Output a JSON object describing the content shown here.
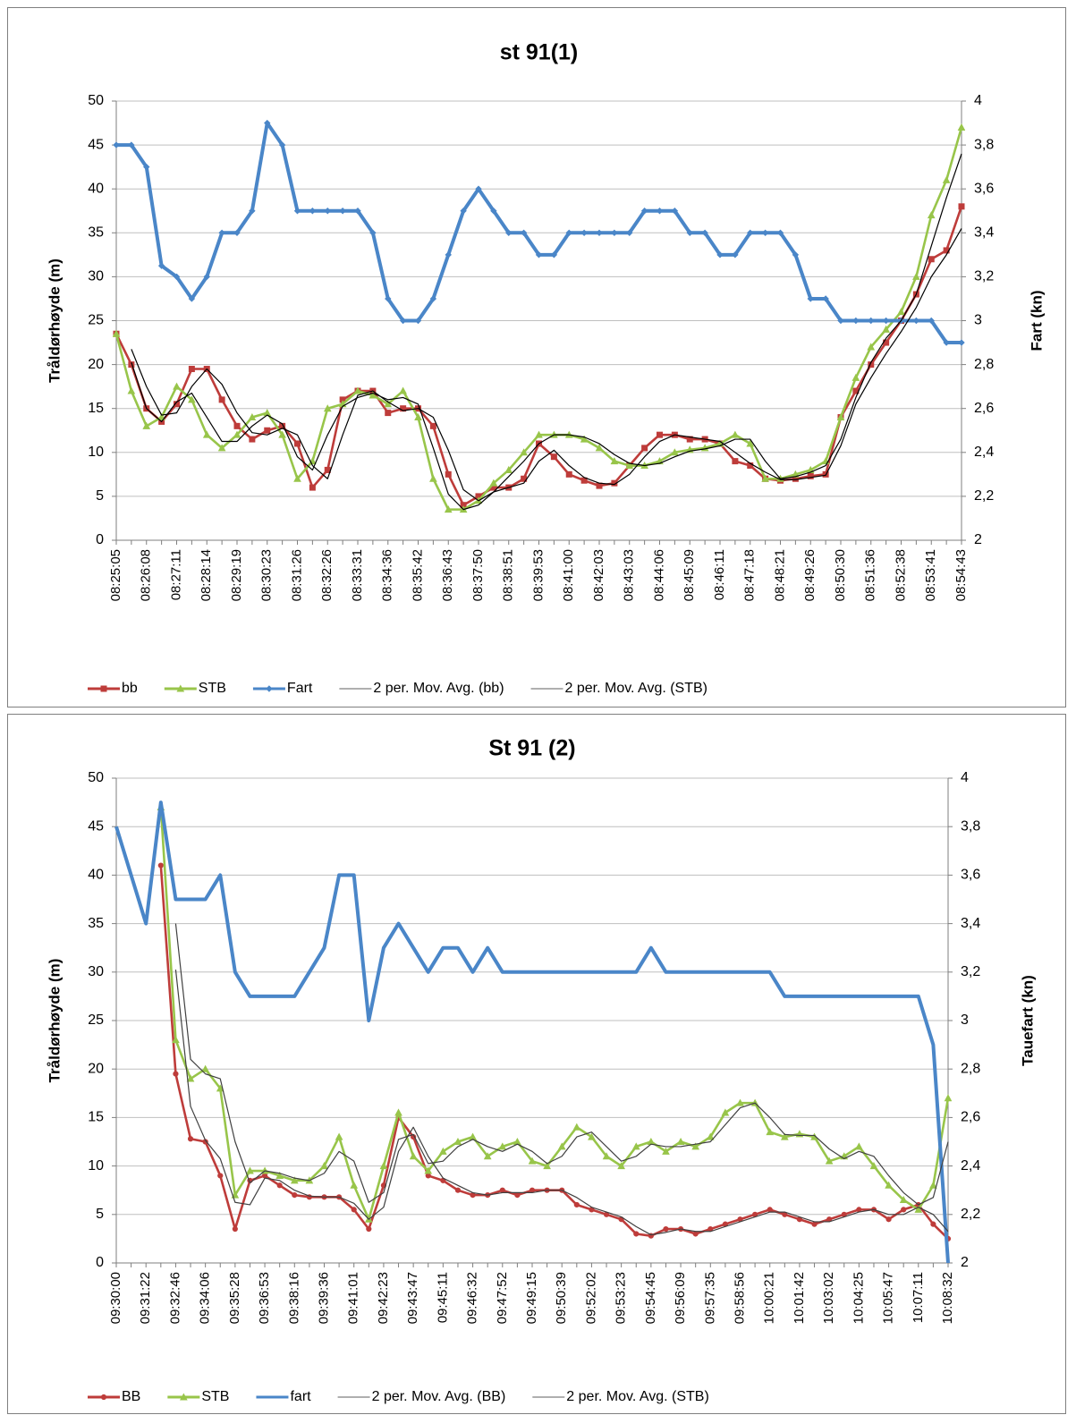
{
  "chart_data": [
    {
      "type": "line",
      "title": "st 91(1)",
      "ylabel": "Tråldørhøyde (m)",
      "y2label": "Fart (kn)",
      "categories": [
        "08:25:05",
        null,
        "08:26:08",
        null,
        "08:27:11",
        null,
        "08:28:14",
        null,
        "08:29:19",
        null,
        "08:30:23",
        null,
        "08:31:26",
        null,
        "08:32:26",
        null,
        "08:33:31",
        null,
        "08:34:36",
        null,
        "08:35:42",
        null,
        "08:36:43",
        null,
        "08:37:50",
        null,
        "08:38:51",
        null,
        "08:39:53",
        null,
        "08:41:00",
        null,
        "08:42:03",
        null,
        "08:43:03",
        null,
        "08:44:06",
        null,
        "08:45:09",
        null,
        "08:46:11",
        null,
        "08:47:18",
        null,
        "08:48:21",
        null,
        "08:49:26",
        null,
        "08:50:30",
        null,
        "08:51:36",
        null,
        "08:52:38",
        null,
        "08:53:41",
        null,
        "08:54:43"
      ],
      "ylim": [
        0,
        50
      ],
      "yticks": [
        0,
        5,
        10,
        15,
        20,
        25,
        30,
        35,
        40,
        45,
        50
      ],
      "y2lim": [
        2,
        4
      ],
      "y2ticks": [
        2,
        {
          "value": 2.2,
          "label": "2,2"
        },
        {
          "value": 2.4,
          "label": "2,4"
        },
        {
          "value": 2.6,
          "label": "2,6"
        },
        {
          "value": 2.8,
          "label": "2,8"
        },
        3,
        {
          "value": 3.2,
          "label": "3,2"
        },
        {
          "value": 3.4,
          "label": "3,4"
        },
        {
          "value": 3.6,
          "label": "3,6"
        },
        {
          "value": 3.8,
          "label": "3,8"
        },
        4
      ],
      "grid": true,
      "legend": "bottom",
      "series": [
        {
          "name": "bb",
          "color": "#be3c3a",
          "marker": "square",
          "values": [
            23.5,
            20,
            15,
            13.5,
            15.5,
            19.5,
            19.5,
            16,
            13,
            11.5,
            12.5,
            13,
            11,
            6,
            8,
            16,
            17,
            17,
            14.5,
            15,
            15,
            13,
            7.5,
            4,
            5,
            6,
            6,
            7,
            11,
            9.5,
            7.5,
            6.8,
            6.2,
            6.5,
            8.5,
            10.5,
            12,
            12,
            11.5,
            11.5,
            11,
            9,
            8.5,
            7,
            6.8,
            7,
            7.3,
            7.5,
            14,
            17,
            20,
            22.5,
            25,
            28,
            32,
            33,
            38
          ]
        },
        {
          "name": "STB",
          "color": "#98c54a",
          "marker": "triangle",
          "values": [
            23.5,
            17,
            13,
            14,
            17.5,
            16,
            12,
            10.5,
            12,
            14,
            14.5,
            12,
            7,
            9,
            15,
            15.5,
            17,
            16.5,
            15.5,
            17,
            14,
            7,
            3.5,
            3.5,
            4.5,
            6.5,
            8,
            10,
            12,
            12,
            12,
            11.5,
            10.5,
            9,
            8.5,
            8.5,
            9,
            10,
            10.3,
            10.5,
            11,
            12,
            11,
            7,
            7,
            7.5,
            8,
            9,
            14,
            18.5,
            22,
            24,
            26,
            30,
            37,
            41,
            47
          ]
        },
        {
          "name": "Fart",
          "color": "#4a86c8",
          "marker": "diamond",
          "axis": "y2",
          "values": [
            3.8,
            3.8,
            3.7,
            3.25,
            3.2,
            3.1,
            3.2,
            3.4,
            3.4,
            3.5,
            3.9,
            3.8,
            3.5,
            3.5,
            3.5,
            3.5,
            3.5,
            3.4,
            3.1,
            3.0,
            3.0,
            3.1,
            3.3,
            3.5,
            3.6,
            3.5,
            3.4,
            3.4,
            3.3,
            3.3,
            3.4,
            3.4,
            3.4,
            3.4,
            3.4,
            3.5,
            3.5,
            3.5,
            3.4,
            3.4,
            3.3,
            3.3,
            3.4,
            3.4,
            3.4,
            3.3,
            3.1,
            3.1,
            3.0,
            3.0,
            3.0,
            3.0,
            3.0,
            3.0,
            3.0,
            2.9,
            2.9
          ]
        },
        {
          "name": "2 per. Mov. Avg. (bb)",
          "color": "#000000",
          "marker": "none",
          "values": [
            null,
            21.75,
            17.5,
            14.25,
            14.5,
            17.5,
            19.5,
            17.75,
            14.5,
            12.25,
            12,
            12.75,
            12,
            8.5,
            7,
            12,
            16.5,
            17,
            15.75,
            14.75,
            15,
            14,
            10.25,
            5.75,
            4.5,
            5.5,
            6,
            6.5,
            9,
            10.25,
            8.5,
            7.15,
            6.5,
            6.35,
            7.5,
            9.5,
            11.25,
            12,
            11.75,
            11.5,
            11.25,
            10,
            8.75,
            7.75,
            6.9,
            6.9,
            7.15,
            7.4,
            10.75,
            15.5,
            18.5,
            21.25,
            23.75,
            26.5,
            30,
            32.5,
            35.5
          ]
        },
        {
          "name": "2 per. Mov. Avg. (STB)",
          "color": "#000000",
          "marker": "none",
          "values": [
            null,
            20.25,
            15,
            13.5,
            15.75,
            16.75,
            14,
            11.25,
            11.25,
            13,
            14.25,
            13.25,
            9.5,
            8,
            12,
            15.25,
            16.25,
            16.75,
            16,
            16.25,
            15.5,
            10.5,
            5.25,
            3.5,
            4,
            5.5,
            7.25,
            9,
            11,
            12,
            12,
            11.75,
            11,
            9.75,
            8.75,
            8.5,
            8.75,
            9.5,
            10.15,
            10.4,
            10.75,
            11.5,
            11.5,
            9,
            7,
            7.25,
            7.75,
            8.5,
            11.5,
            16.25,
            20.25,
            23,
            25,
            28,
            33.5,
            39,
            44
          ]
        }
      ]
    },
    {
      "type": "line",
      "title": "St 91 (2)",
      "ylabel": "Tråldørhøyde (m)",
      "y2label": "Tauefart (kn)",
      "categories": [
        "09:30:00",
        null,
        "09:31:22",
        null,
        "09:32:46",
        null,
        "09:34:06",
        null,
        "09:35:28",
        null,
        "09:36:53",
        null,
        "09:38:16",
        null,
        "09:39:36",
        null,
        "09:41:01",
        null,
        "09:42:23",
        null,
        "09:43:47",
        null,
        "09:45:11",
        null,
        "09:46:32",
        null,
        "09:47:52",
        null,
        "09:49:15",
        null,
        "09:50:39",
        null,
        "09:52:02",
        null,
        "09:53:23",
        null,
        "09:54:45",
        null,
        "09:56:09",
        null,
        "09:57:35",
        null,
        "09:58:56",
        null,
        "10:00:21",
        null,
        "10:01:42",
        null,
        "10:03:02",
        null,
        "10:04:25",
        null,
        "10:05:47",
        null,
        "10:07:11",
        null,
        "10:08:32"
      ],
      "ylim": [
        0,
        50
      ],
      "yticks": [
        0,
        5,
        10,
        15,
        20,
        25,
        30,
        35,
        40,
        45,
        50
      ],
      "y2lim": [
        2,
        4
      ],
      "y2ticks": [
        2,
        {
          "value": 2.2,
          "label": "2,2"
        },
        {
          "value": 2.4,
          "label": "2,4"
        },
        {
          "value": 2.6,
          "label": "2,6"
        },
        {
          "value": 2.8,
          "label": "2,8"
        },
        3,
        {
          "value": 3.2,
          "label": "3,2"
        },
        {
          "value": 3.4,
          "label": "3,4"
        },
        {
          "value": 3.6,
          "label": "3,6"
        },
        {
          "value": 3.8,
          "label": "3,8"
        },
        4
      ],
      "grid": true,
      "legend": "bottom",
      "series": [
        {
          "name": "BB",
          "color": "#be3c3a",
          "marker": "circle",
          "values": [
            null,
            null,
            null,
            41,
            19.5,
            12.8,
            12.5,
            9,
            3.5,
            8.5,
            9,
            8,
            7,
            6.8,
            6.8,
            6.8,
            5.5,
            3.5,
            8,
            15,
            13,
            9,
            8.5,
            7.5,
            7,
            7,
            7.5,
            7,
            7.5,
            7.5,
            7.5,
            6,
            5.5,
            5,
            4.5,
            3,
            2.8,
            3.5,
            3.5,
            3,
            3.5,
            4,
            4.5,
            5,
            5.5,
            5,
            4.5,
            4,
            4.5,
            5,
            5.5,
            5.5,
            4.5,
            5.5,
            6,
            4,
            2.5
          ]
        },
        {
          "name": "STB",
          "color": "#98c54a",
          "marker": "triangle",
          "values": [
            null,
            null,
            null,
            47,
            23,
            19,
            20,
            18,
            7,
            9.5,
            9.5,
            9,
            8.5,
            8.5,
            10,
            13,
            8,
            4.5,
            10,
            15.5,
            11,
            9.5,
            11.5,
            12.5,
            13,
            11,
            12,
            12.5,
            10.5,
            10,
            12,
            14,
            13,
            11,
            10,
            12,
            12.5,
            11.5,
            12.5,
            12,
            13,
            15.5,
            16.5,
            16.5,
            13.5,
            13,
            13.3,
            13,
            10.5,
            11,
            12,
            10,
            8,
            6.5,
            5.5,
            8,
            17
          ]
        },
        {
          "name": "fart",
          "color": "#4a86c8",
          "marker": "none",
          "axis": "y2",
          "values": [
            3.8,
            3.6,
            3.4,
            3.9,
            3.5,
            3.5,
            3.5,
            3.6,
            3.2,
            3.1,
            3.1,
            3.1,
            3.1,
            3.2,
            3.3,
            3.6,
            3.6,
            3.0,
            3.3,
            3.4,
            3.3,
            3.2,
            3.3,
            3.3,
            3.2,
            3.3,
            3.2,
            3.2,
            3.2,
            3.2,
            3.2,
            3.2,
            3.2,
            3.2,
            3.2,
            3.2,
            3.3,
            3.2,
            3.2,
            3.2,
            3.2,
            3.2,
            3.2,
            3.2,
            3.2,
            3.1,
            3.1,
            3.1,
            3.1,
            3.1,
            3.1,
            3.1,
            3.1,
            3.1,
            3.1,
            2.9,
            2.0
          ]
        },
        {
          "name": "2 per. Mov. Avg. (BB)",
          "color": "#404040",
          "marker": "none",
          "values": [
            null,
            null,
            null,
            null,
            30.25,
            16.15,
            12.65,
            10.75,
            6.25,
            6,
            8.75,
            8.5,
            7.5,
            6.9,
            6.8,
            6.8,
            6.15,
            4.5,
            5.75,
            11.5,
            14,
            11,
            8.75,
            8,
            7.25,
            7,
            7.25,
            7.25,
            7.25,
            7.5,
            7.5,
            6.75,
            5.75,
            5.25,
            4.75,
            3.75,
            2.9,
            3.15,
            3.5,
            3.25,
            3.25,
            3.75,
            4.25,
            4.75,
            5.25,
            5.25,
            4.75,
            4.25,
            4.25,
            4.75,
            5.25,
            5.5,
            5,
            5,
            5.75,
            5,
            3.25
          ]
        },
        {
          "name": "2 per. Mov. Avg. (STB)",
          "color": "#404040",
          "marker": "none",
          "values": [
            null,
            null,
            null,
            null,
            35,
            21,
            19.5,
            19,
            12.5,
            8.25,
            9.5,
            9.25,
            8.75,
            8.5,
            9.25,
            11.5,
            10.5,
            6.25,
            7.25,
            12.75,
            13.25,
            10.25,
            10.5,
            12,
            12.75,
            12,
            11.5,
            12.25,
            11.5,
            10.25,
            11,
            13,
            13.5,
            12,
            10.5,
            11,
            12.25,
            12,
            12,
            12.25,
            12.5,
            14.25,
            16,
            16.5,
            15,
            13.25,
            13.15,
            13.15,
            11.75,
            10.75,
            11.5,
            11,
            9,
            7.25,
            6,
            6.75,
            12.5
          ]
        }
      ]
    }
  ]
}
